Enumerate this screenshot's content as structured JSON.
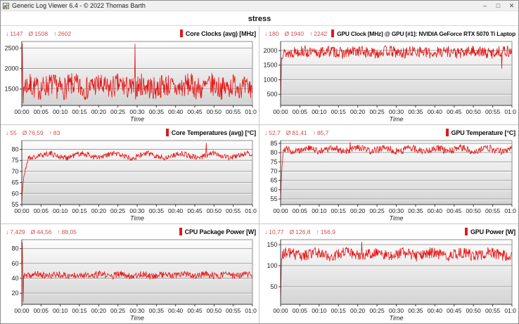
{
  "window": {
    "title": "Generic Log Viewer 6.4 - © 2022 Thomas Barth",
    "controls": [
      {
        "name": "minimize",
        "glyph": "–"
      },
      {
        "name": "maximize",
        "glyph": "□"
      },
      {
        "name": "close",
        "glyph": "✕"
      }
    ]
  },
  "header": {
    "title": "stress"
  },
  "glyphs": {
    "min": "↓",
    "avg": "Ø",
    "max": "↑"
  },
  "axis": {
    "xlabel": "Time",
    "xticks": [
      "00:00",
      "00:05",
      "00:10",
      "00:15",
      "00:20",
      "00:25",
      "00:30",
      "00:35",
      "00:40",
      "00:45",
      "00:50",
      "00:55",
      "01:00"
    ]
  },
  "colors": {
    "line": "#e61414",
    "stats_text": "#cf4f4f",
    "marker": "#e0191c",
    "grid": "#9b9b9b",
    "grid_highlight": "#ffffff",
    "axis": "#3a3a3a",
    "plot_border": "#8d8d8d",
    "plot_bg_top": "#fdfdfd",
    "plot_bg_bottom": "#d4d4d4",
    "titlebar_bg": "#f0f0f0",
    "separator": "#c8c8c8",
    "tick_text": "#1c1c1c"
  },
  "charts": [
    {
      "id": "core-clocks",
      "title": "Core Clocks (avg) [MHz]",
      "type": "line",
      "stats": {
        "min": "1147",
        "avg": "1508",
        "max": "2602"
      },
      "ylim": [
        1100,
        2660
      ],
      "yticks": [
        1500,
        2000,
        2500
      ],
      "waveform": {
        "seed": 7,
        "baseline": 1555,
        "noise": 290,
        "slow_amp": 50,
        "slow_freq": 10,
        "clamp": [
          1240,
          2210
        ],
        "spikes": [
          {
            "t": 0.002,
            "v": 2602
          },
          {
            "t": 0.006,
            "v": 1147
          },
          {
            "t": 0.49,
            "v": 2602
          }
        ]
      }
    },
    {
      "id": "gpu-clock",
      "title": "GPU Clock [MHz] @ GPU [#1]: NVIDIA GeForce RTX 5070 Ti Laptop",
      "type": "line",
      "stats": {
        "min": "180",
        "avg": "1940",
        "max": "2242"
      },
      "ylim": [
        120,
        2310
      ],
      "yticks": [
        500,
        1000,
        1500,
        2000
      ],
      "waveform": {
        "seed": 13,
        "baseline": 1945,
        "noise": 195,
        "slow_amp": 40,
        "slow_freq": 8,
        "clamp": [
          1695,
          2242
        ],
        "ramp": {
          "from": 180,
          "dur": 0.004,
          "curve": 1
        },
        "spikes": [
          {
            "t": 0.955,
            "v": 1380
          }
        ]
      }
    },
    {
      "id": "core-temperatures",
      "title": "Core Temperatures (avg) [°C]",
      "type": "line",
      "stats": {
        "min": "55",
        "avg": "76,59",
        "max": "83"
      },
      "ylim": [
        55,
        84
      ],
      "yticks": [
        55,
        60,
        65,
        70,
        75,
        80
      ],
      "waveform": {
        "seed": 21,
        "baseline": 77.2,
        "noise": 1.3,
        "slow_amp": 0.9,
        "slow_freq": 7,
        "clamp": [
          74.2,
          80.3
        ],
        "ramp": {
          "from": 55,
          "dur": 0.03,
          "curve": 0.5
        },
        "spikes": [
          {
            "t": 0.8,
            "v": 83
          }
        ]
      }
    },
    {
      "id": "gpu-temperature",
      "title": "GPU Temperature [°C]",
      "type": "line",
      "stats": {
        "min": "52,7",
        "avg": "81,41",
        "max": "85,7"
      },
      "ylim": [
        52,
        86.5
      ],
      "yticks": [
        55,
        60,
        65,
        70,
        75,
        80,
        85
      ],
      "waveform": {
        "seed": 29,
        "baseline": 81.6,
        "noise": 1.9,
        "slow_amp": 0.8,
        "slow_freq": 9,
        "clamp": [
          77.6,
          85.5
        ],
        "ramp": {
          "from": 52.7,
          "dur": 0.012,
          "curve": 0.6
        },
        "spikes": [
          {
            "t": 0.3,
            "v": 85.7
          }
        ]
      }
    },
    {
      "id": "cpu-package-power",
      "title": "CPU Package Power [W]",
      "type": "line",
      "stats": {
        "min": "7,429",
        "avg": "44,56",
        "max": "88,05"
      },
      "ylim": [
        5,
        92
      ],
      "yticks": [
        20,
        40,
        60,
        80
      ],
      "waveform": {
        "seed": 37,
        "baseline": 44.3,
        "noise": 4.4,
        "slow_amp": 1.2,
        "slow_freq": 11,
        "clamp": [
          38.8,
          56
        ],
        "spikes": [
          {
            "t": 0.003,
            "v": 88.05
          },
          {
            "t": 0.006,
            "v": 7.429
          }
        ]
      }
    },
    {
      "id": "gpu-power",
      "title": "GPU Power [W]",
      "type": "line",
      "stats": {
        "min": "10,77",
        "avg": "126,8",
        "max": "156,9"
      },
      "ylim": [
        8,
        162
      ],
      "yticks": [
        50,
        100,
        150
      ],
      "waveform": {
        "seed": 43,
        "baseline": 127,
        "noise": 13,
        "slow_amp": 4,
        "slow_freq": 8,
        "clamp": [
          102,
          155
        ],
        "ramp": {
          "from": 10.77,
          "dur": 0.004,
          "curve": 1
        },
        "spikes": [
          {
            "t": 0.35,
            "v": 156.9
          }
        ]
      }
    }
  ]
}
